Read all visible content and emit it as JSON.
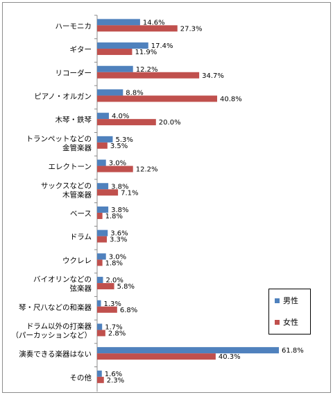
{
  "chart_data": {
    "type": "bar",
    "orientation": "horizontal",
    "categories": [
      "ハーモニカ",
      "ギター",
      "リコーダー",
      "ピアノ・オルガン",
      "木琴・鉄琴",
      "トランペットなどの\n金管楽器",
      "エレクトーン",
      "サックスなどの\n木管楽器",
      "ベース",
      "ドラム",
      "ウクレレ",
      "バイオリンなどの\n弦楽器",
      "琴・尺八などの和楽器",
      "ドラム以外の打楽器\n（パーカッションなど）",
      "演奏できる楽器はない",
      "その他"
    ],
    "series": [
      {
        "name": "男性",
        "color": "#4f81bd",
        "values": [
          14.6,
          17.4,
          12.2,
          8.8,
          4.0,
          5.3,
          3.0,
          3.8,
          3.8,
          3.6,
          3.0,
          2.0,
          1.3,
          1.7,
          61.8,
          1.6
        ]
      },
      {
        "name": "女性",
        "color": "#c0504d",
        "values": [
          27.3,
          11.9,
          34.7,
          40.8,
          20.0,
          3.5,
          12.2,
          7.1,
          1.8,
          3.3,
          1.8,
          5.8,
          6.8,
          2.8,
          40.3,
          2.3
        ]
      }
    ],
    "value_suffix": "%",
    "xlim": [
      0,
      70
    ],
    "grid": false,
    "legend_position": "right"
  },
  "legend": {
    "male": "男性",
    "female": "女性"
  }
}
